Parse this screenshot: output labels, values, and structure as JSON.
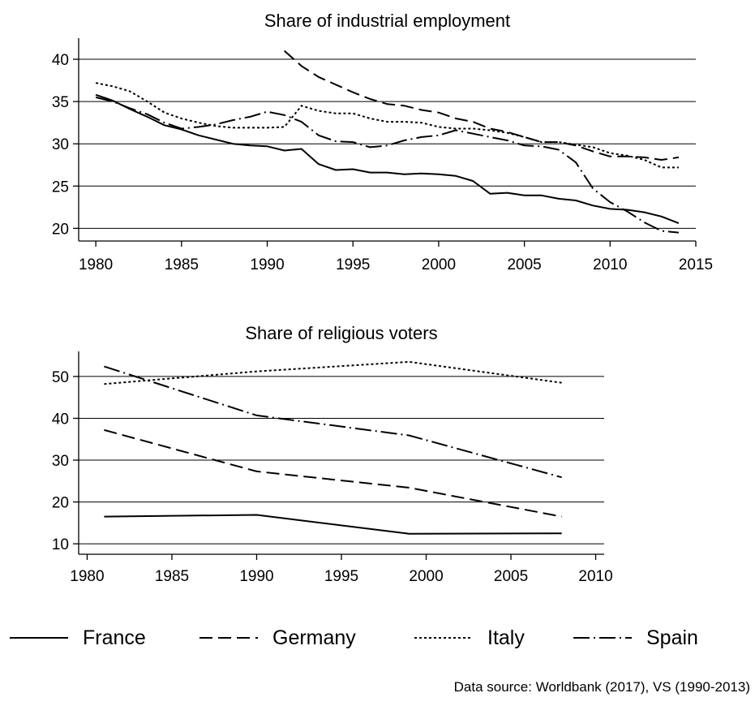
{
  "chart_data": [
    {
      "type": "line",
      "title": "Share of industrial employment",
      "xlabel": "",
      "ylabel": "",
      "xlim": [
        1979,
        2015
      ],
      "ylim": [
        18.5,
        42.5
      ],
      "xticks": [
        1980,
        1985,
        1990,
        1995,
        2000,
        2005,
        2010,
        2015
      ],
      "yticks": [
        20,
        25,
        30,
        35,
        40
      ],
      "grid": "horizontal",
      "series": [
        {
          "name": "France",
          "x": [
            1980,
            1981,
            1982,
            1983,
            1984,
            1985,
            1986,
            1987,
            1988,
            1989,
            1990,
            1991,
            1992,
            1993,
            1994,
            1995,
            1996,
            1997,
            1998,
            1999,
            2000,
            2001,
            2002,
            2003,
            2004,
            2005,
            2006,
            2007,
            2008,
            2009,
            2010,
            2011,
            2012,
            2013,
            2014
          ],
          "values": [
            35.8,
            35.1,
            34.1,
            33.2,
            32.2,
            31.7,
            31.0,
            30.5,
            30.0,
            29.8,
            29.7,
            29.2,
            29.4,
            27.6,
            26.9,
            27.0,
            26.6,
            26.6,
            26.4,
            26.5,
            26.4,
            26.2,
            25.6,
            24.1,
            24.2,
            23.9,
            23.9,
            23.5,
            23.3,
            22.7,
            22.3,
            22.2,
            21.9,
            21.4,
            20.6
          ]
        },
        {
          "name": "Germany",
          "x": [
            1991,
            1992,
            1993,
            1994,
            1995,
            1996,
            1997,
            1998,
            1999,
            2000,
            2001,
            2002,
            2003,
            2004,
            2005,
            2006,
            2007,
            2008,
            2009,
            2010,
            2011,
            2012,
            2013,
            2014
          ],
          "values": [
            41.0,
            39.2,
            37.9,
            37.0,
            36.1,
            35.3,
            34.7,
            34.5,
            34.0,
            33.7,
            33.0,
            32.6,
            31.8,
            31.4,
            30.8,
            30.2,
            30.2,
            29.8,
            29.1,
            28.5,
            28.5,
            28.4,
            28.1,
            28.4
          ]
        },
        {
          "name": "Italy",
          "x": [
            1980,
            1981,
            1982,
            1983,
            1984,
            1985,
            1986,
            1987,
            1988,
            1989,
            1990,
            1991,
            1992,
            1993,
            1994,
            1995,
            1996,
            1997,
            1998,
            1999,
            2000,
            2001,
            2002,
            2003,
            2004,
            2005,
            2006,
            2007,
            2008,
            2009,
            2010,
            2011,
            2012,
            2013,
            2014
          ],
          "values": [
            37.2,
            36.8,
            36.2,
            35.0,
            33.7,
            33.0,
            32.5,
            32.1,
            31.9,
            31.9,
            31.9,
            32.0,
            34.5,
            33.9,
            33.6,
            33.6,
            33.0,
            32.6,
            32.6,
            32.5,
            32.0,
            31.8,
            31.8,
            31.6,
            31.3,
            30.8,
            30.2,
            30.2,
            29.9,
            29.6,
            28.9,
            28.6,
            28.1,
            27.2,
            27.2
          ]
        },
        {
          "name": "Spain",
          "x": [
            1980,
            1981,
            1982,
            1983,
            1984,
            1985,
            1986,
            1987,
            1988,
            1989,
            1990,
            1991,
            1992,
            1993,
            1994,
            1995,
            1996,
            1997,
            1998,
            1999,
            2000,
            2001,
            2002,
            2003,
            2004,
            2005,
            2006,
            2007,
            2008,
            2009,
            2010,
            2011,
            2012,
            2013,
            2014
          ],
          "values": [
            35.5,
            35.0,
            34.2,
            33.5,
            32.5,
            31.8,
            32.0,
            32.3,
            32.8,
            33.2,
            33.8,
            33.4,
            32.6,
            31.0,
            30.3,
            30.2,
            29.6,
            29.8,
            30.4,
            30.8,
            31.0,
            31.6,
            31.2,
            30.8,
            30.4,
            29.8,
            29.7,
            29.3,
            27.8,
            24.7,
            23.1,
            22.0,
            20.7,
            19.7,
            19.5
          ]
        }
      ]
    },
    {
      "type": "line",
      "title": "Share of religious voters",
      "xlabel": "",
      "ylabel": "",
      "xlim": [
        1979.5,
        2010.5
      ],
      "ylim": [
        7.5,
        56
      ],
      "xticks": [
        1980,
        1985,
        1990,
        1995,
        2000,
        2005,
        2010
      ],
      "yticks": [
        10,
        20,
        30,
        40,
        50
      ],
      "grid": "horizontal",
      "series": [
        {
          "name": "France",
          "x": [
            1981,
            1990,
            1999,
            2008
          ],
          "values": [
            16.5,
            16.9,
            12.4,
            12.5
          ]
        },
        {
          "name": "Germany",
          "x": [
            1981,
            1990,
            1999,
            2008
          ],
          "values": [
            37.2,
            27.3,
            23.4,
            16.5
          ]
        },
        {
          "name": "Italy",
          "x": [
            1981,
            1990,
            1999,
            2008
          ],
          "values": [
            48.2,
            51.2,
            53.5,
            48.5
          ]
        },
        {
          "name": "Spain",
          "x": [
            1981,
            1990,
            1999,
            2008
          ],
          "values": [
            52.4,
            40.7,
            35.9,
            25.9
          ]
        }
      ]
    }
  ],
  "legend": {
    "placement": "bottom",
    "entries": [
      {
        "label": "France",
        "style": "solid"
      },
      {
        "label": "Germany",
        "style": "dashed"
      },
      {
        "label": "Italy",
        "style": "dotted"
      },
      {
        "label": "Spain",
        "style": "dash-dot"
      }
    ]
  },
  "source": "Data source: Worldbank (2017), VS (1990-2013)",
  "colors": {
    "line": "#000000",
    "grid": "#000000",
    "background": "#ffffff"
  }
}
